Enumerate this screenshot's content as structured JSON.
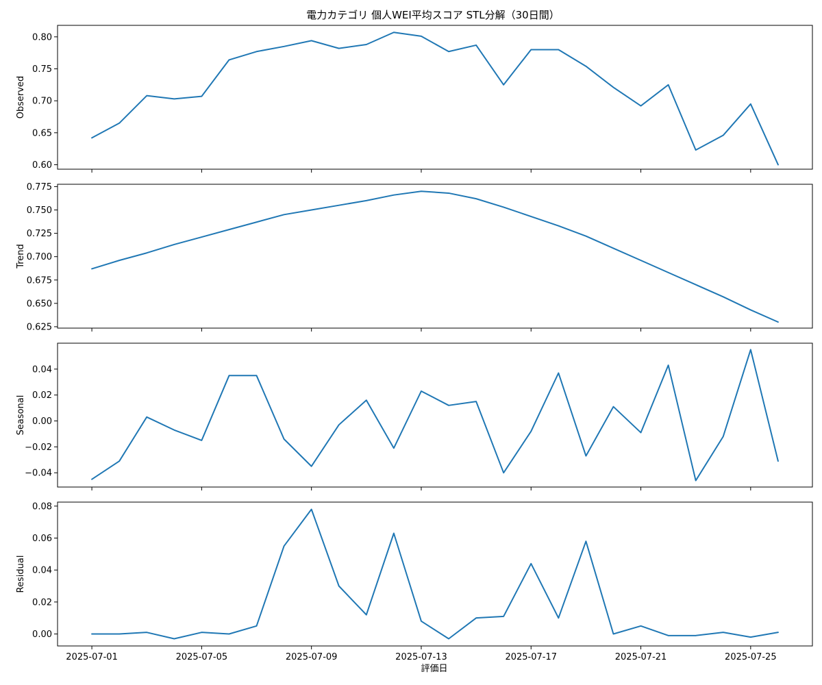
{
  "chart_data": {
    "type": "line",
    "title": "電力カテゴリ 個人WEI平均スコア STL分解（30日間）",
    "xlabel": "評価日",
    "x": [
      "2025-07-01",
      "2025-07-02",
      "2025-07-03",
      "2025-07-04",
      "2025-07-05",
      "2025-07-06",
      "2025-07-07",
      "2025-07-08",
      "2025-07-09",
      "2025-07-10",
      "2025-07-11",
      "2025-07-12",
      "2025-07-13",
      "2025-07-14",
      "2025-07-15",
      "2025-07-16",
      "2025-07-17",
      "2025-07-18",
      "2025-07-19",
      "2025-07-20",
      "2025-07-21",
      "2025-07-22",
      "2025-07-23",
      "2025-07-24",
      "2025-07-25",
      "2025-07-26"
    ],
    "xticks": [
      "2025-07-01",
      "2025-07-05",
      "2025-07-09",
      "2025-07-13",
      "2025-07-17",
      "2025-07-21",
      "2025-07-25"
    ],
    "color": "#1f77b4",
    "panels": [
      {
        "ylabel": "Observed",
        "ylim": [
          0.593,
          0.818
        ],
        "yticks": [
          0.6,
          0.65,
          0.7,
          0.75,
          0.8
        ],
        "tick_format": "0.00",
        "values": [
          0.642,
          0.665,
          0.708,
          0.703,
          0.707,
          0.764,
          0.777,
          0.785,
          0.794,
          0.782,
          0.788,
          0.807,
          0.801,
          0.777,
          0.787,
          0.725,
          0.78,
          0.78,
          0.754,
          0.721,
          0.692,
          0.725,
          0.623,
          0.646,
          0.695,
          0.6
        ]
      },
      {
        "ylabel": "Trend",
        "ylim": [
          0.6235,
          0.7775
        ],
        "yticks": [
          0.625,
          0.65,
          0.675,
          0.7,
          0.725,
          0.75,
          0.775
        ],
        "tick_format": "0.000",
        "values": [
          0.687,
          0.696,
          0.704,
          0.713,
          0.721,
          0.729,
          0.737,
          0.745,
          0.75,
          0.755,
          0.76,
          0.766,
          0.77,
          0.768,
          0.762,
          0.753,
          0.743,
          0.733,
          0.722,
          0.709,
          0.696,
          0.683,
          0.67,
          0.657,
          0.643,
          0.63
        ]
      },
      {
        "ylabel": "Seasonal",
        "ylim": [
          -0.051,
          0.06
        ],
        "yticks": [
          -0.04,
          -0.02,
          0.0,
          0.02,
          0.04
        ],
        "tick_format": "0.00",
        "values": [
          -0.045,
          -0.031,
          0.003,
          -0.007,
          -0.015,
          0.035,
          0.035,
          -0.014,
          -0.035,
          -0.003,
          0.016,
          -0.021,
          0.023,
          0.012,
          0.015,
          -0.04,
          -0.008,
          0.037,
          -0.027,
          0.011,
          -0.009,
          0.043,
          -0.046,
          -0.012,
          0.055,
          -0.031
        ]
      },
      {
        "ylabel": "Residual",
        "ylim": [
          -0.0075,
          0.0825
        ],
        "yticks": [
          0.0,
          0.02,
          0.04,
          0.06,
          0.08
        ],
        "tick_format": "0.00",
        "values": [
          0.0,
          0.0,
          0.001,
          -0.003,
          0.001,
          0.0,
          0.005,
          0.055,
          0.078,
          0.03,
          0.012,
          0.063,
          0.008,
          -0.003,
          0.01,
          0.011,
          0.044,
          0.01,
          0.058,
          0.0,
          0.005,
          -0.001,
          -0.001,
          0.001,
          -0.002,
          0.001
        ]
      }
    ]
  }
}
